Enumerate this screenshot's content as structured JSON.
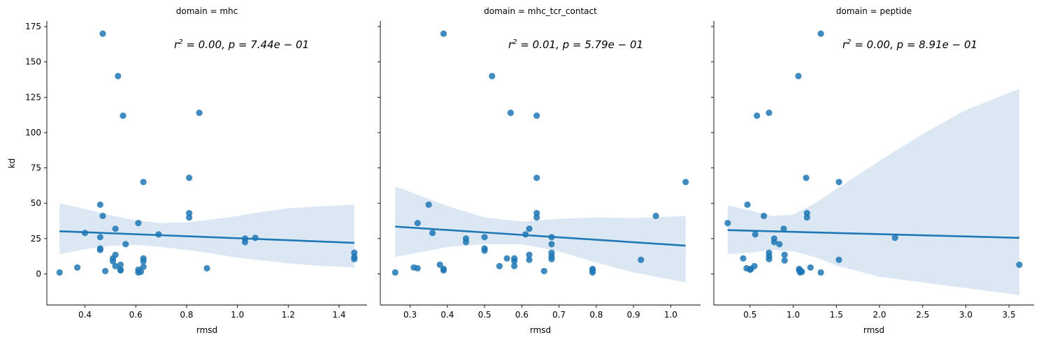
{
  "chart_data": [
    {
      "type": "scatter",
      "title": "domain = mhc",
      "xlabel": "rmsd",
      "ylabel": "kd",
      "annotation": "r^2 = 0.00, p = 7.44e-01",
      "annotation_parts": {
        "r2": "0.00",
        "p": "7.44e",
        "exp": "01"
      },
      "xlim": [
        0.25,
        1.51
      ],
      "ylim": [
        -22,
        179
      ],
      "xticks": [
        0.4,
        0.6,
        0.8,
        1.0,
        1.2,
        1.4
      ],
      "xtick_labels": [
        "0.4",
        "0.6",
        "0.8",
        "1.0",
        "1.2",
        "1.4"
      ],
      "yticks": [
        0,
        25,
        50,
        75,
        100,
        125,
        150,
        175
      ],
      "ytick_labels": [
        "0",
        "25",
        "50",
        "75",
        "100",
        "125",
        "150",
        "175"
      ],
      "points": [
        [
          0.3,
          1
        ],
        [
          0.37,
          4.5
        ],
        [
          0.4,
          29
        ],
        [
          0.46,
          49
        ],
        [
          0.46,
          26
        ],
        [
          0.46,
          17
        ],
        [
          0.46,
          18
        ],
        [
          0.47,
          170
        ],
        [
          0.47,
          41
        ],
        [
          0.48,
          2
        ],
        [
          0.51,
          11
        ],
        [
          0.51,
          9
        ],
        [
          0.52,
          32
        ],
        [
          0.52,
          13.5
        ],
        [
          0.52,
          5.5
        ],
        [
          0.53,
          140
        ],
        [
          0.54,
          6.5
        ],
        [
          0.54,
          3
        ],
        [
          0.54,
          2.5
        ],
        [
          0.55,
          112
        ],
        [
          0.56,
          21
        ],
        [
          0.61,
          36
        ],
        [
          0.61,
          3
        ],
        [
          0.61,
          1
        ],
        [
          0.62,
          1.5
        ],
        [
          0.63,
          65
        ],
        [
          0.63,
          11
        ],
        [
          0.63,
          9
        ],
        [
          0.63,
          5
        ],
        [
          0.69,
          28
        ],
        [
          0.81,
          68
        ],
        [
          0.81,
          43
        ],
        [
          0.81,
          40
        ],
        [
          0.85,
          114
        ],
        [
          0.88,
          4
        ],
        [
          1.03,
          25
        ],
        [
          1.03,
          22.5
        ],
        [
          1.07,
          25.5
        ],
        [
          1.46,
          15
        ],
        [
          1.46,
          12
        ],
        [
          1.46,
          10.5
        ]
      ],
      "fit": {
        "x": [
          0.3,
          1.46
        ],
        "y": [
          30.2,
          22.0
        ]
      },
      "ci": {
        "x": [
          0.3,
          0.4,
          0.5,
          0.6,
          0.7,
          0.8,
          0.9,
          1.0,
          1.1,
          1.2,
          1.3,
          1.46
        ],
        "upper": [
          50,
          46,
          41.5,
          38,
          36,
          36.5,
          38.5,
          41,
          44,
          46.5,
          47.5,
          49
        ],
        "lower": [
          14,
          17.5,
          20,
          20.5,
          19,
          17,
          14.5,
          11.5,
          9.5,
          7.5,
          6,
          4.5
        ]
      },
      "color": "#1f77b4",
      "ci_color": "#cfe0f0"
    },
    {
      "type": "scatter",
      "title": "domain = mhc_tcr_contact",
      "xlabel": "rmsd",
      "ylabel": "",
      "annotation": "r^2 = 0.01, p = 5.79e-01",
      "annotation_parts": {
        "r2": "0.01",
        "p": "5.79e",
        "exp": "01"
      },
      "xlim": [
        0.22,
        1.08
      ],
      "ylim": [
        -22,
        179
      ],
      "xticks": [
        0.3,
        0.4,
        0.5,
        0.6,
        0.7,
        0.8,
        0.9,
        1.0
      ],
      "xtick_labels": [
        "0.3",
        "0.4",
        "0.5",
        "0.6",
        "0.7",
        "0.8",
        "0.9",
        "1.0"
      ],
      "yticks": [
        0,
        25,
        50,
        75,
        100,
        125,
        150,
        175
      ],
      "points": [
        [
          0.26,
          1
        ],
        [
          0.31,
          4.5
        ],
        [
          0.32,
          36
        ],
        [
          0.32,
          4
        ],
        [
          0.35,
          49
        ],
        [
          0.36,
          29
        ],
        [
          0.38,
          6.5
        ],
        [
          0.39,
          170
        ],
        [
          0.39,
          3.5
        ],
        [
          0.39,
          2.5
        ],
        [
          0.45,
          25
        ],
        [
          0.45,
          22.5
        ],
        [
          0.5,
          26
        ],
        [
          0.5,
          18
        ],
        [
          0.5,
          16.5
        ],
        [
          0.52,
          140
        ],
        [
          0.54,
          5.5
        ],
        [
          0.56,
          11
        ],
        [
          0.57,
          114
        ],
        [
          0.58,
          11
        ],
        [
          0.58,
          9
        ],
        [
          0.58,
          5.5
        ],
        [
          0.61,
          28
        ],
        [
          0.62,
          32
        ],
        [
          0.62,
          13.5
        ],
        [
          0.62,
          10
        ],
        [
          0.64,
          112
        ],
        [
          0.64,
          68
        ],
        [
          0.64,
          43
        ],
        [
          0.64,
          40
        ],
        [
          0.66,
          2
        ],
        [
          0.68,
          26
        ],
        [
          0.68,
          21
        ],
        [
          0.68,
          15
        ],
        [
          0.68,
          12.5
        ],
        [
          0.68,
          10.5
        ],
        [
          0.79,
          3.5
        ],
        [
          0.79,
          2.5
        ],
        [
          0.79,
          1
        ],
        [
          0.92,
          10
        ],
        [
          0.96,
          41
        ],
        [
          1.04,
          65
        ]
      ],
      "fit": {
        "x": [
          0.26,
          1.04
        ],
        "y": [
          33.5,
          20.0
        ]
      },
      "ci": {
        "x": [
          0.26,
          0.3,
          0.4,
          0.5,
          0.6,
          0.7,
          0.8,
          0.9,
          1.04
        ],
        "upper": [
          62,
          58,
          48,
          40,
          37,
          39,
          40,
          39.5,
          41
        ],
        "lower": [
          12,
          14,
          19,
          21,
          21,
          16,
          8,
          1,
          -6
        ]
      },
      "color": "#1f77b4",
      "ci_color": "#cfe0f0"
    },
    {
      "type": "scatter",
      "title": "domain = peptide",
      "xlabel": "rmsd",
      "ylabel": "",
      "annotation": "r^2 = 0.00, p = 8.91e-01",
      "annotation_parts": {
        "r2": "0.00",
        "p": "8.91e",
        "exp": "01"
      },
      "xlim": [
        0.08,
        3.79
      ],
      "ylim": [
        -22,
        179
      ],
      "xticks": [
        0.5,
        1.0,
        1.5,
        2.0,
        2.5,
        3.0,
        3.5
      ],
      "xtick_labels": [
        "0.5",
        "1.0",
        "1.5",
        "2.0",
        "2.5",
        "3.0",
        "3.5"
      ],
      "yticks": [
        0,
        25,
        50,
        75,
        100,
        125,
        150,
        175
      ],
      "points": [
        [
          0.24,
          36
        ],
        [
          0.42,
          11
        ],
        [
          0.46,
          4
        ],
        [
          0.47,
          49
        ],
        [
          0.5,
          3
        ],
        [
          0.51,
          3.5
        ],
        [
          0.55,
          5.5
        ],
        [
          0.56,
          28
        ],
        [
          0.58,
          112
        ],
        [
          0.66,
          41
        ],
        [
          0.72,
          114
        ],
        [
          0.72,
          15
        ],
        [
          0.72,
          12.5
        ],
        [
          0.72,
          10.5
        ],
        [
          0.78,
          25
        ],
        [
          0.78,
          22.5
        ],
        [
          0.84,
          21
        ],
        [
          0.89,
          32
        ],
        [
          0.9,
          13.5
        ],
        [
          0.9,
          9.5
        ],
        [
          1.06,
          140
        ],
        [
          1.07,
          3.5
        ],
        [
          1.07,
          2.5
        ],
        [
          1.08,
          1
        ],
        [
          1.09,
          2
        ],
        [
          1.1,
          1.5
        ],
        [
          1.15,
          68
        ],
        [
          1.16,
          43
        ],
        [
          1.16,
          40
        ],
        [
          1.2,
          4.5
        ],
        [
          1.32,
          170
        ],
        [
          1.32,
          1
        ],
        [
          1.53,
          65
        ],
        [
          1.53,
          10
        ],
        [
          2.18,
          25.5
        ],
        [
          3.62,
          6.5
        ]
      ],
      "fit": {
        "x": [
          0.24,
          3.62
        ],
        "y": [
          31.0,
          25.5
        ]
      },
      "ci": {
        "x": [
          0.24,
          0.5,
          0.75,
          1.0,
          1.25,
          1.5,
          2.0,
          2.5,
          3.0,
          3.62
        ],
        "upper": [
          48.5,
          45,
          41,
          42,
          50,
          60,
          80,
          99,
          116,
          131
        ],
        "lower": [
          14,
          15,
          17,
          16,
          12,
          6,
          -2,
          -6,
          -10,
          -15
        ]
      },
      "color": "#1f77b4",
      "ci_color": "#cfe0f0"
    }
  ]
}
